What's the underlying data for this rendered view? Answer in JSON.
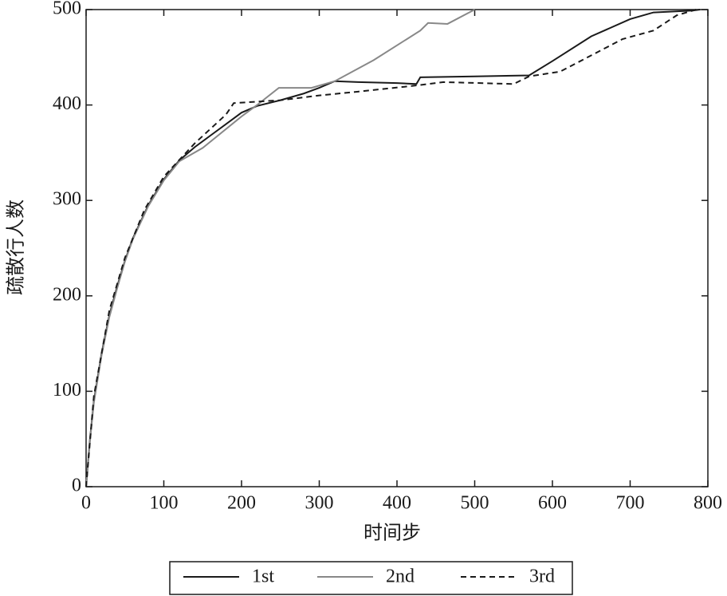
{
  "chart_data": {
    "type": "line",
    "x_label": "时间步",
    "y_label": "疏散行人数",
    "xlim": [
      0,
      800
    ],
    "xticks": [
      0,
      100,
      200,
      300,
      400,
      500,
      600,
      700,
      800
    ],
    "ylim": [
      0,
      500
    ],
    "yticks": [
      0,
      100,
      200,
      300,
      400,
      500
    ],
    "legend": "bottom",
    "series": [
      {
        "name": "1st",
        "color": "#1a1a1a",
        "style": "solid",
        "x": [
          0,
          5,
          10,
          20,
          30,
          40,
          50,
          60,
          80,
          100,
          120,
          140,
          160,
          180,
          200,
          220,
          250,
          280,
          300,
          320,
          350,
          400,
          425,
          430,
          500,
          570,
          600,
          650,
          700,
          730,
          780,
          790
        ],
        "values": [
          0,
          50,
          90,
          140,
          180,
          210,
          237,
          260,
          295,
          322,
          342,
          356,
          368,
          380,
          392,
          399,
          405,
          412,
          418,
          425,
          424,
          423,
          422,
          429,
          430,
          431,
          446,
          472,
          490,
          497,
          499,
          500
        ]
      },
      {
        "name": "2nd",
        "color": "#888888",
        "style": "solid",
        "x": [
          0,
          5,
          10,
          20,
          30,
          40,
          50,
          60,
          80,
          100,
          120,
          150,
          200,
          220,
          248,
          290,
          320,
          370,
          430,
          440,
          465,
          500
        ],
        "values": [
          0,
          48,
          88,
          138,
          178,
          208,
          236,
          259,
          294,
          321,
          341,
          355,
          388,
          400,
          418,
          418,
          425,
          447,
          478,
          486,
          485,
          500
        ]
      },
      {
        "name": "3rd",
        "color": "#1a1a1a",
        "style": "dashed",
        "x": [
          0,
          10,
          30,
          50,
          75,
          100,
          140,
          180,
          190,
          250,
          300,
          350,
          420,
          460,
          550,
          570,
          610,
          650,
          690,
          730,
          760,
          785
        ],
        "values": [
          0,
          95,
          185,
          240,
          290,
          325,
          360,
          390,
          402,
          405,
          410,
          414,
          420,
          424,
          422,
          430,
          435,
          452,
          469,
          478,
          494,
          500
        ]
      }
    ]
  }
}
